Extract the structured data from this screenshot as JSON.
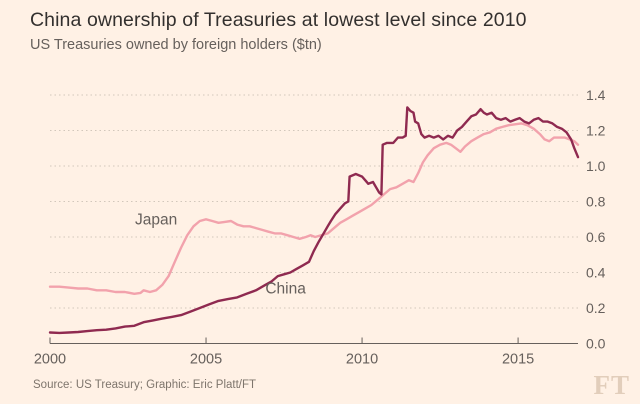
{
  "header": {
    "title": "China ownership of Treasuries at lowest level since 2010",
    "subtitle": "US Treasuries owned by foreign holders ($tn)"
  },
  "footer": {
    "source": "Source: US Treasury; Graphic: Eric Platt/FT",
    "logo": "FT"
  },
  "colors": {
    "background": "#fff1e5",
    "title_text": "#33302e",
    "muted_text": "#66605c",
    "gridline": "#d2c7bb",
    "axis": "#66605c",
    "japan_line": "#f2a2ac",
    "china_line": "#8f2a50"
  },
  "chart_data": {
    "type": "line",
    "title": "China ownership of Treasuries at lowest level since 2010",
    "subtitle": "US Treasuries owned by foreign holders ($tn)",
    "xlabel": "",
    "ylabel": "$tn",
    "grid": "horizontal-dotted",
    "legend_position": "inline-labels",
    "x_range": [
      2000,
      2016.92
    ],
    "y_range": [
      0,
      1.4
    ],
    "x_ticks": [
      {
        "value": 2000,
        "label": "2000"
      },
      {
        "value": 2005,
        "label": "2005"
      },
      {
        "value": 2010,
        "label": "2010"
      },
      {
        "value": 2015,
        "label": "2015"
      }
    ],
    "y_ticks": [
      {
        "value": 0.0,
        "label": "0.0"
      },
      {
        "value": 0.2,
        "label": "0.2"
      },
      {
        "value": 0.4,
        "label": "0.4"
      },
      {
        "value": 0.6,
        "label": "0.6"
      },
      {
        "value": 0.8,
        "label": "0.8"
      },
      {
        "value": 1.0,
        "label": "1.0"
      },
      {
        "value": 1.2,
        "label": "1.2"
      },
      {
        "value": 1.4,
        "label": "1.4"
      }
    ],
    "series": [
      {
        "name": "Japan",
        "color": "#f2a2ac",
        "label_anchor": {
          "x": 2003.4,
          "y": 0.7
        },
        "points": [
          [
            2000.0,
            0.32
          ],
          [
            2000.3,
            0.32
          ],
          [
            2000.6,
            0.315
          ],
          [
            2000.9,
            0.31
          ],
          [
            2001.2,
            0.31
          ],
          [
            2001.5,
            0.3
          ],
          [
            2001.8,
            0.3
          ],
          [
            2002.1,
            0.29
          ],
          [
            2002.4,
            0.29
          ],
          [
            2002.7,
            0.28
          ],
          [
            2002.9,
            0.285
          ],
          [
            2003.0,
            0.3
          ],
          [
            2003.2,
            0.29
          ],
          [
            2003.4,
            0.3
          ],
          [
            2003.6,
            0.33
          ],
          [
            2003.8,
            0.38
          ],
          [
            2004.0,
            0.46
          ],
          [
            2004.2,
            0.54
          ],
          [
            2004.4,
            0.61
          ],
          [
            2004.6,
            0.66
          ],
          [
            2004.8,
            0.69
          ],
          [
            2005.0,
            0.7
          ],
          [
            2005.2,
            0.69
          ],
          [
            2005.4,
            0.68
          ],
          [
            2005.6,
            0.685
          ],
          [
            2005.8,
            0.69
          ],
          [
            2006.0,
            0.67
          ],
          [
            2006.2,
            0.66
          ],
          [
            2006.4,
            0.66
          ],
          [
            2006.6,
            0.65
          ],
          [
            2006.8,
            0.64
          ],
          [
            2007.0,
            0.63
          ],
          [
            2007.2,
            0.62
          ],
          [
            2007.4,
            0.62
          ],
          [
            2007.6,
            0.61
          ],
          [
            2007.8,
            0.6
          ],
          [
            2008.0,
            0.59
          ],
          [
            2008.2,
            0.6
          ],
          [
            2008.35,
            0.61
          ],
          [
            2008.5,
            0.6
          ],
          [
            2008.7,
            0.61
          ],
          [
            2008.9,
            0.62
          ],
          [
            2009.1,
            0.65
          ],
          [
            2009.3,
            0.68
          ],
          [
            2009.5,
            0.7
          ],
          [
            2009.7,
            0.72
          ],
          [
            2009.9,
            0.74
          ],
          [
            2010.1,
            0.76
          ],
          [
            2010.3,
            0.78
          ],
          [
            2010.5,
            0.81
          ],
          [
            2010.7,
            0.84
          ],
          [
            2010.9,
            0.87
          ],
          [
            2011.1,
            0.88
          ],
          [
            2011.3,
            0.9
          ],
          [
            2011.5,
            0.92
          ],
          [
            2011.65,
            0.91
          ],
          [
            2011.8,
            0.96
          ],
          [
            2011.95,
            1.02
          ],
          [
            2012.1,
            1.06
          ],
          [
            2012.3,
            1.1
          ],
          [
            2012.5,
            1.12
          ],
          [
            2012.7,
            1.13
          ],
          [
            2012.85,
            1.12
          ],
          [
            2013.0,
            1.1
          ],
          [
            2013.15,
            1.08
          ],
          [
            2013.3,
            1.11
          ],
          [
            2013.5,
            1.14
          ],
          [
            2013.7,
            1.16
          ],
          [
            2013.9,
            1.18
          ],
          [
            2014.1,
            1.19
          ],
          [
            2014.3,
            1.21
          ],
          [
            2014.5,
            1.22
          ],
          [
            2014.7,
            1.23
          ],
          [
            2014.9,
            1.235
          ],
          [
            2015.1,
            1.24
          ],
          [
            2015.3,
            1.23
          ],
          [
            2015.5,
            1.21
          ],
          [
            2015.7,
            1.18
          ],
          [
            2015.85,
            1.15
          ],
          [
            2016.0,
            1.14
          ],
          [
            2016.15,
            1.16
          ],
          [
            2016.3,
            1.16
          ],
          [
            2016.5,
            1.16
          ],
          [
            2016.65,
            1.15
          ],
          [
            2016.8,
            1.14
          ],
          [
            2016.92,
            1.12
          ]
        ]
      },
      {
        "name": "China",
        "color": "#8f2a50",
        "label_anchor": {
          "x": 2007.55,
          "y": 0.31
        },
        "points": [
          [
            2000.0,
            0.062
          ],
          [
            2000.3,
            0.06
          ],
          [
            2000.6,
            0.062
          ],
          [
            2000.9,
            0.065
          ],
          [
            2001.2,
            0.07
          ],
          [
            2001.5,
            0.075
          ],
          [
            2001.8,
            0.078
          ],
          [
            2002.1,
            0.085
          ],
          [
            2002.4,
            0.095
          ],
          [
            2002.7,
            0.1
          ],
          [
            2003.0,
            0.12
          ],
          [
            2003.3,
            0.13
          ],
          [
            2003.6,
            0.14
          ],
          [
            2003.9,
            0.15
          ],
          [
            2004.2,
            0.16
          ],
          [
            2004.5,
            0.18
          ],
          [
            2004.8,
            0.2
          ],
          [
            2005.1,
            0.22
          ],
          [
            2005.4,
            0.24
          ],
          [
            2005.7,
            0.25
          ],
          [
            2006.0,
            0.26
          ],
          [
            2006.3,
            0.28
          ],
          [
            2006.6,
            0.3
          ],
          [
            2006.9,
            0.33
          ],
          [
            2007.1,
            0.35
          ],
          [
            2007.3,
            0.38
          ],
          [
            2007.5,
            0.39
          ],
          [
            2007.7,
            0.4
          ],
          [
            2007.9,
            0.42
          ],
          [
            2008.1,
            0.44
          ],
          [
            2008.3,
            0.46
          ],
          [
            2008.45,
            0.52
          ],
          [
            2008.6,
            0.57
          ],
          [
            2008.7,
            0.6
          ],
          [
            2008.8,
            0.63
          ],
          [
            2008.9,
            0.66
          ],
          [
            2009.0,
            0.69
          ],
          [
            2009.15,
            0.73
          ],
          [
            2009.3,
            0.76
          ],
          [
            2009.45,
            0.79
          ],
          [
            2009.56,
            0.8
          ],
          [
            2009.6,
            0.94
          ],
          [
            2009.8,
            0.955
          ],
          [
            2010.0,
            0.94
          ],
          [
            2010.1,
            0.92
          ],
          [
            2010.2,
            0.9
          ],
          [
            2010.35,
            0.91
          ],
          [
            2010.45,
            0.88
          ],
          [
            2010.55,
            0.85
          ],
          [
            2010.62,
            0.84
          ],
          [
            2010.66,
            1.12
          ],
          [
            2010.8,
            1.13
          ],
          [
            2011.0,
            1.13
          ],
          [
            2011.15,
            1.16
          ],
          [
            2011.3,
            1.16
          ],
          [
            2011.4,
            1.17
          ],
          [
            2011.45,
            1.33
          ],
          [
            2011.55,
            1.31
          ],
          [
            2011.65,
            1.3
          ],
          [
            2011.7,
            1.25
          ],
          [
            2011.8,
            1.24
          ],
          [
            2011.9,
            1.18
          ],
          [
            2012.0,
            1.16
          ],
          [
            2012.15,
            1.17
          ],
          [
            2012.3,
            1.16
          ],
          [
            2012.45,
            1.17
          ],
          [
            2012.6,
            1.15
          ],
          [
            2012.75,
            1.17
          ],
          [
            2012.9,
            1.16
          ],
          [
            2013.05,
            1.2
          ],
          [
            2013.2,
            1.22
          ],
          [
            2013.35,
            1.25
          ],
          [
            2013.5,
            1.28
          ],
          [
            2013.65,
            1.29
          ],
          [
            2013.8,
            1.32
          ],
          [
            2013.9,
            1.3
          ],
          [
            2014.0,
            1.29
          ],
          [
            2014.15,
            1.3
          ],
          [
            2014.3,
            1.27
          ],
          [
            2014.45,
            1.26
          ],
          [
            2014.6,
            1.27
          ],
          [
            2014.75,
            1.25
          ],
          [
            2014.9,
            1.26
          ],
          [
            2015.05,
            1.27
          ],
          [
            2015.2,
            1.25
          ],
          [
            2015.35,
            1.24
          ],
          [
            2015.5,
            1.26
          ],
          [
            2015.65,
            1.27
          ],
          [
            2015.8,
            1.25
          ],
          [
            2015.95,
            1.25
          ],
          [
            2016.1,
            1.24
          ],
          [
            2016.25,
            1.22
          ],
          [
            2016.4,
            1.21
          ],
          [
            2016.55,
            1.19
          ],
          [
            2016.7,
            1.15
          ],
          [
            2016.8,
            1.1
          ],
          [
            2016.92,
            1.05
          ]
        ]
      }
    ]
  }
}
